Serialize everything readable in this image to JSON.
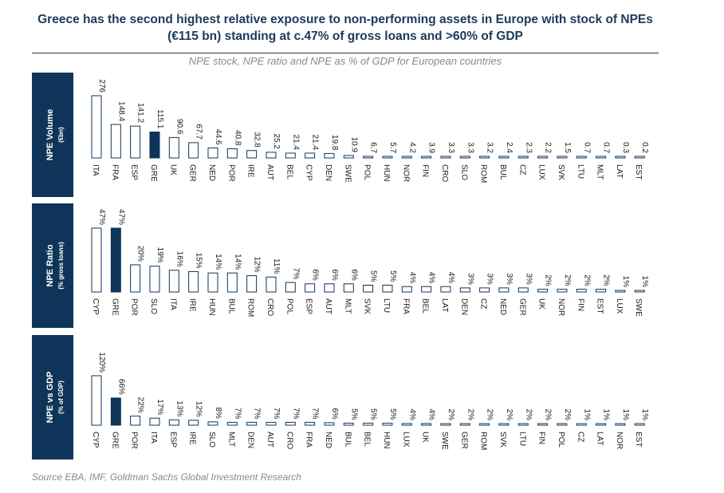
{
  "title": "Greece has the second highest relative exposure to non-performing assets in Europe with stock of NPEs (€115 bn) standing at c.47% of gross loans and >60% of GDP",
  "subtitle": "NPE stock, NPE ratio and NPE as % of GDP for European countries",
  "source": "Source EBA, IMF, Goldman Sachs Global Investment Research",
  "colors": {
    "panel": "#0e3559",
    "highlight": "#0e3559",
    "bar_fill": "#ffffff",
    "bar_edge": "#0e3559"
  },
  "chart_data": [
    {
      "type": "bar",
      "panel_label": "NPE Volume",
      "panel_sublabel": "(€bn)",
      "highlight": "GRE",
      "categories": [
        "ITA",
        "FRA",
        "ESP",
        "GRE",
        "UK",
        "GER",
        "NED",
        "POR",
        "IRE",
        "AUT",
        "BEL",
        "CYP",
        "DEN",
        "SWE",
        "POL",
        "HUN",
        "NOR",
        "FIN",
        "CRO",
        "SLO",
        "ROM",
        "BUL",
        "CZ",
        "LUX",
        "SVK",
        "LTU",
        "MLT",
        "LAT",
        "EST"
      ],
      "values": [
        276,
        148.4,
        141.2,
        115.1,
        90.6,
        67.7,
        44.6,
        40.8,
        32.8,
        25.2,
        21.4,
        21.4,
        19.8,
        10.9,
        6.7,
        5.7,
        4.2,
        3.9,
        3.3,
        3.3,
        3.2,
        2.4,
        2.3,
        2.2,
        1.5,
        0.7,
        0.7,
        0.3,
        0.2
      ],
      "labels": [
        "276",
        "148.4",
        "141.2",
        "115.1",
        "90.6",
        "67.7",
        "44.6",
        "40.8",
        "32.8",
        "25.2",
        "21.4",
        "21.4",
        "19.8",
        "10.9",
        "6.7",
        "5.7",
        "4.2",
        "3.9",
        "3.3",
        "3.3",
        "3.2",
        "2.4",
        "2.3",
        "2.2",
        "1.5",
        "0.7",
        "0.7",
        "0.3",
        "0.2"
      ]
    },
    {
      "type": "bar",
      "panel_label": "NPE Ratio",
      "panel_sublabel": "(% gross loans)",
      "highlight": "GRE",
      "categories": [
        "CYP",
        "GRE",
        "POR",
        "SLO",
        "ITA",
        "IRE",
        "HUN",
        "BUL",
        "ROM",
        "CRO",
        "POL",
        "ESP",
        "AUT",
        "MLT",
        "SVK",
        "LTU",
        "FRA",
        "BEL",
        "LAT",
        "DEN",
        "CZ",
        "NED",
        "GER",
        "UK",
        "NOR",
        "FIN",
        "EST",
        "LUX",
        "SWE"
      ],
      "values": [
        47,
        47,
        20,
        19,
        16,
        15,
        14,
        14,
        12,
        11,
        7,
        6,
        6,
        6,
        5,
        5,
        4,
        4,
        4,
        3,
        3,
        3,
        3,
        2,
        2,
        2,
        2,
        1,
        1
      ],
      "labels": [
        "47%",
        "47%",
        "20%",
        "19%",
        "16%",
        "15%",
        "14%",
        "14%",
        "12%",
        "11%",
        "7%",
        "6%",
        "6%",
        "6%",
        "5%",
        "5%",
        "4%",
        "4%",
        "4%",
        "3%",
        "3%",
        "3%",
        "3%",
        "2%",
        "2%",
        "2%",
        "2%",
        "1%",
        "1%"
      ]
    },
    {
      "type": "bar",
      "panel_label": "NPE vs GDP",
      "panel_sublabel": "(% of GDP)",
      "highlight": "GRE",
      "categories": [
        "CYP",
        "GRE",
        "POR",
        "ITA",
        "ESP",
        "IRE",
        "SLO",
        "MLT",
        "DEN",
        "AUT",
        "CRO",
        "FRA",
        "NED",
        "BUL",
        "BEL",
        "HUN",
        "LUX",
        "UK",
        "SWE",
        "GER",
        "ROM",
        "SVK",
        "LTU",
        "FIN",
        "POL",
        "CZ",
        "LAT",
        "NOR",
        "EST"
      ],
      "values": [
        120,
        66,
        22,
        17,
        13,
        12,
        8,
        7,
        7,
        7,
        7,
        7,
        6,
        5,
        5,
        5,
        4,
        4,
        2,
        2,
        2,
        2,
        2,
        2,
        2,
        1,
        1,
        1,
        1
      ],
      "labels": [
        "120%",
        "66%",
        "22%",
        "17%",
        "13%",
        "12%",
        "8%",
        "7%",
        "7%",
        "7%",
        "7%",
        "7%",
        "6%",
        "5%",
        "5%",
        "5%",
        "4%",
        "4%",
        "2%",
        "2%",
        "2%",
        "2%",
        "2%",
        "2%",
        "2%",
        "1%",
        "1%",
        "1%",
        "1%"
      ]
    }
  ]
}
